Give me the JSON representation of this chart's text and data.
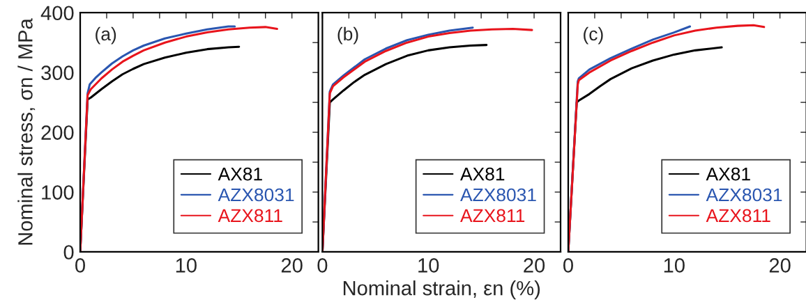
{
  "chart_data": [
    {
      "type": "line",
      "ylabel": "Nominal stress, σn / MPa",
      "annotations": [
        "(a)"
      ],
      "xlim": [
        0,
        22.5
      ],
      "ylim": [
        0,
        400
      ],
      "xticks": [
        0,
        {
          "value": 2.5,
          "label": null
        },
        {
          "value": 5,
          "label": null
        },
        {
          "value": 7.5,
          "label": null
        },
        10,
        {
          "value": 12.5,
          "label": null
        },
        {
          "value": 15,
          "label": null
        },
        {
          "value": 17.5,
          "label": null
        },
        20
      ],
      "yticks": [
        0,
        {
          "value": 50,
          "label": null
        },
        100,
        {
          "value": 150,
          "label": null
        },
        200,
        {
          "value": 250,
          "label": null
        },
        300,
        {
          "value": 350,
          "label": null
        },
        400
      ],
      "legend": "bottom right",
      "grid": false,
      "series": [
        {
          "name": "AX81",
          "color": "#000000",
          "x": [
            0,
            0.7,
            1,
            2,
            3,
            4,
            5,
            6,
            8,
            10,
            12,
            14,
            15
          ],
          "values": [
            0,
            255,
            258,
            272,
            285,
            297,
            306,
            314,
            325,
            333,
            339,
            342,
            343
          ]
        },
        {
          "name": "AZX8031",
          "color": "#2a56b0",
          "x": [
            0,
            0.7,
            0.9,
            1.5,
            2,
            3,
            4,
            5,
            6,
            8,
            10,
            12,
            14,
            14.6
          ],
          "values": [
            0,
            265,
            280,
            292,
            300,
            315,
            327,
            337,
            345,
            357,
            365,
            372,
            377,
            377
          ]
        },
        {
          "name": "AZX811",
          "color": "#e8141c",
          "x": [
            0,
            0.7,
            1,
            2,
            3,
            4,
            5,
            6,
            8,
            10,
            12,
            14,
            16,
            17.5,
            18.6
          ],
          "values": [
            0,
            262,
            272,
            290,
            305,
            318,
            328,
            337,
            350,
            360,
            367,
            372,
            375,
            376,
            373
          ]
        }
      ]
    },
    {
      "type": "line",
      "xlabel": "Nominal strain, εn (%)",
      "annotations": [
        "(b)"
      ],
      "xlim": [
        0,
        22.5
      ],
      "ylim": [
        0,
        400
      ],
      "tick_labels": "x",
      "xticks": [
        0,
        {
          "value": 2.5,
          "label": null
        },
        {
          "value": 5,
          "label": null
        },
        {
          "value": 7.5,
          "label": null
        },
        10,
        {
          "value": 12.5,
          "label": null
        },
        {
          "value": 15,
          "label": null
        },
        {
          "value": 17.5,
          "label": null
        },
        20
      ],
      "yticks": [
        0,
        {
          "value": 50,
          "label": null
        },
        100,
        {
          "value": 150,
          "label": null
        },
        200,
        {
          "value": 250,
          "label": null
        },
        300,
        {
          "value": 350,
          "label": null
        },
        400
      ],
      "legend": "bottom right",
      "grid": false,
      "series": [
        {
          "name": "AX81",
          "color": "#000000",
          "x": [
            0,
            0.7,
            1,
            2,
            3,
            4,
            6,
            8,
            10,
            12,
            14,
            15.5
          ],
          "values": [
            0,
            250,
            255,
            270,
            284,
            296,
            314,
            328,
            337,
            342,
            345,
            346
          ]
        },
        {
          "name": "AZX8031",
          "color": "#2a56b0",
          "x": [
            0,
            0.7,
            1,
            2,
            4,
            6,
            8,
            10,
            12,
            14.2
          ],
          "values": [
            0,
            268,
            280,
            295,
            322,
            340,
            354,
            363,
            370,
            375
          ]
        },
        {
          "name": "AZX811",
          "color": "#e8141c",
          "x": [
            0,
            0.7,
            1,
            2,
            4,
            6,
            8,
            10,
            12,
            14,
            16,
            18,
            19.8
          ],
          "values": [
            0,
            265,
            277,
            292,
            318,
            336,
            350,
            360,
            366,
            370,
            372,
            373,
            371
          ]
        }
      ]
    },
    {
      "type": "line",
      "annotations": [
        "(c)"
      ],
      "xlim": [
        0,
        22.5
      ],
      "ylim": [
        0,
        400
      ],
      "tick_labels": "x",
      "xticks": [
        0,
        {
          "value": 2.5,
          "label": null
        },
        {
          "value": 5,
          "label": null
        },
        {
          "value": 7.5,
          "label": null
        },
        10,
        {
          "value": 12.5,
          "label": null
        },
        {
          "value": 15,
          "label": null
        },
        {
          "value": 17.5,
          "label": null
        },
        20
      ],
      "yticks": [
        0,
        {
          "value": 50,
          "label": null
        },
        100,
        {
          "value": 150,
          "label": null
        },
        200,
        {
          "value": 250,
          "label": null
        },
        300,
        {
          "value": 350,
          "label": null
        },
        400
      ],
      "legend": "bottom right",
      "grid": false,
      "series": [
        {
          "name": "AX81",
          "color": "#000000",
          "x": [
            0,
            0.8,
            1,
            2,
            3,
            4,
            6,
            8,
            10,
            12,
            14.5
          ],
          "values": [
            0,
            250,
            253,
            264,
            277,
            289,
            307,
            320,
            330,
            337,
            342
          ]
        },
        {
          "name": "AZX8031",
          "color": "#2a56b0",
          "x": [
            0,
            0.9,
            1,
            2,
            4,
            6,
            8,
            10,
            11.5
          ],
          "values": [
            0,
            285,
            290,
            305,
            324,
            340,
            355,
            367,
            377
          ]
        },
        {
          "name": "AZX811",
          "color": "#e8141c",
          "x": [
            0,
            0.9,
            1,
            2,
            4,
            6,
            8,
            10,
            12,
            14,
            16,
            17.5,
            18.5
          ],
          "values": [
            0,
            280,
            287,
            300,
            320,
            336,
            350,
            362,
            370,
            375,
            378,
            379,
            376
          ]
        }
      ]
    }
  ]
}
